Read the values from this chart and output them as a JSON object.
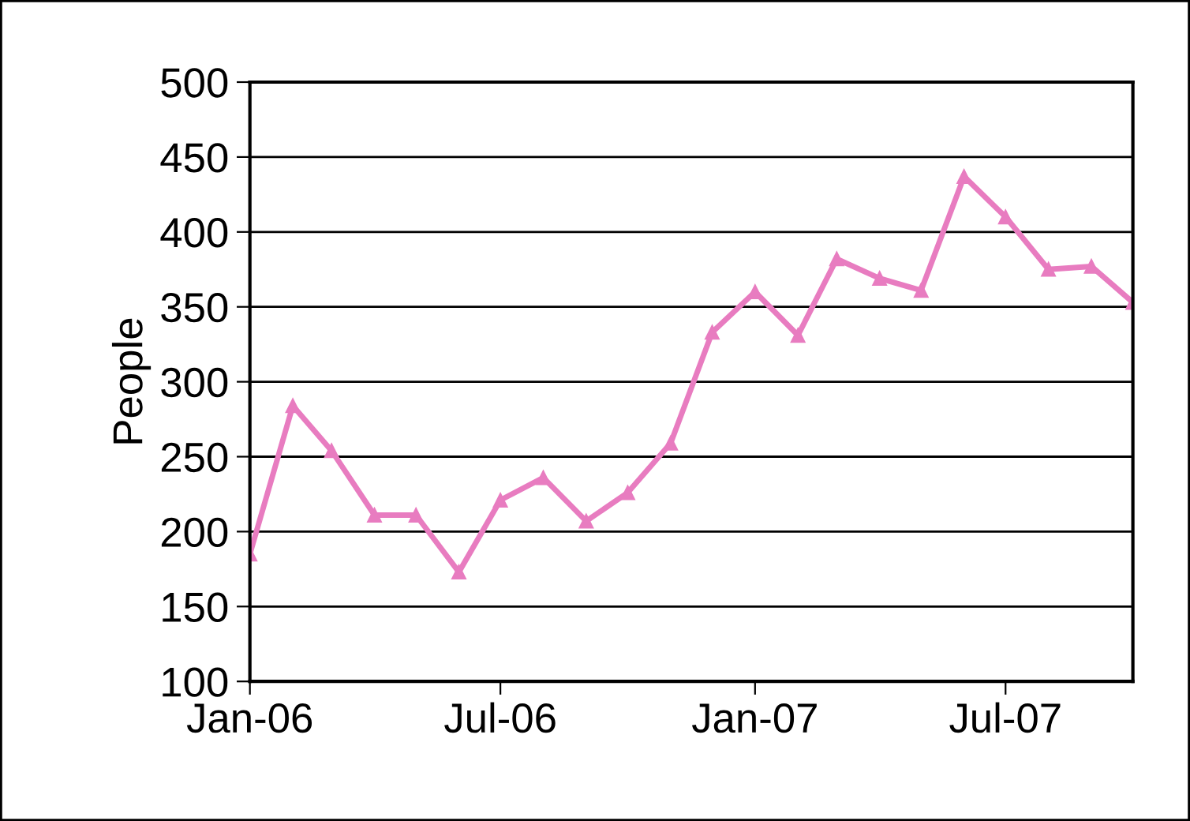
{
  "chart_data": {
    "type": "line",
    "ylabel": "People",
    "x": [
      "2006-01",
      "2006-02",
      "2006-03",
      "2006-04",
      "2006-05",
      "2006-06",
      "2006-07",
      "2006-08",
      "2006-09",
      "2006-10",
      "2006-11",
      "2006-12",
      "2007-01",
      "2007-02",
      "2007-03",
      "2007-04",
      "2007-05",
      "2007-06",
      "2007-07",
      "2007-08",
      "2007-09",
      "2007-10"
    ],
    "series": [
      {
        "color": "#e87cc0",
        "values": [
          185,
          284,
          254,
          211,
          211,
          173,
          221,
          236,
          207,
          226,
          259,
          333,
          360,
          331,
          382,
          369,
          361,
          437,
          410,
          375,
          377,
          353
        ]
      }
    ],
    "xlim": [
      "2006-01",
      "2007-10"
    ],
    "xticks": [
      {
        "value": "2006-01",
        "label": "Jan-06"
      },
      {
        "value": "2006-07",
        "label": "Jul-06"
      },
      {
        "value": "2007-01",
        "label": "Jan-07"
      },
      {
        "value": "2007-07",
        "label": "Jul-07"
      }
    ],
    "ylim": [
      100,
      500
    ],
    "yticks": [
      100,
      150,
      200,
      250,
      300,
      350,
      400,
      450,
      500
    ],
    "grid": "y",
    "marker": "triangle",
    "line_style": "solid"
  }
}
